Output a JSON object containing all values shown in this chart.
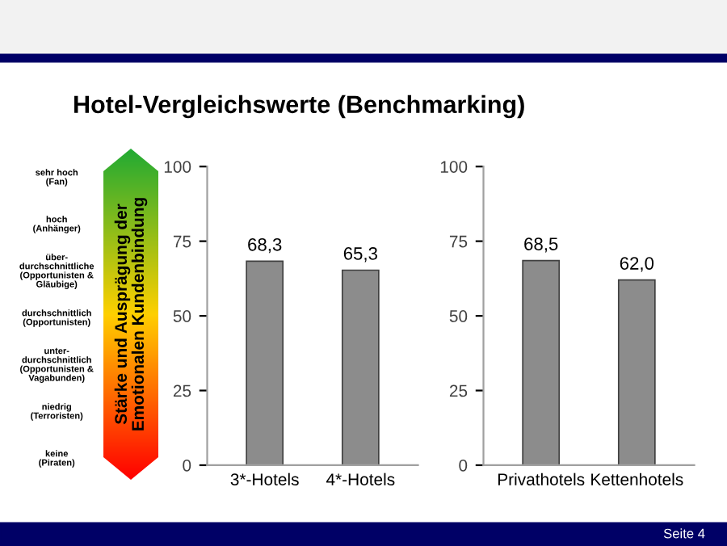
{
  "chart_data": [
    {
      "type": "bar",
      "title": "Hotel-Vergleichswerte (Benchmarking)",
      "categories": [
        "3*-Hotels",
        "4*-Hotels"
      ],
      "values": [
        68.3,
        65.3
      ],
      "value_labels": [
        "68,3",
        "65,3"
      ],
      "color": "#8c8c8c",
      "ylim": [
        0,
        100
      ],
      "yticks": [
        0,
        25,
        50,
        75,
        100
      ],
      "annotations": [
        "sehr hoch\n(Fan)",
        "hoch\n(Anhänger)",
        "über-\ndurchschnittliche\n(Opportunisten &\nGläubige)",
        "durchschnittlich\n(Opportunisten)",
        "unter-\ndurchschnittlich\n(Opportunisten &\nVagabunden)",
        "niedrig\n(Terroristen)",
        "keine\n(Piraten)",
        "Stärke und Ausprägung der\nEmotionalen Kundenbindung",
        "Seite 4"
      ]
    },
    {
      "type": "bar",
      "categories": [
        "Privathotels",
        "Kettenhotels"
      ],
      "values": [
        68.5,
        62.0
      ],
      "value_labels": [
        "68,5",
        "62,0"
      ],
      "color": "#8c8c8c",
      "ylim": [
        0,
        100
      ],
      "yticks": [
        0,
        25,
        50,
        75,
        100
      ]
    }
  ]
}
